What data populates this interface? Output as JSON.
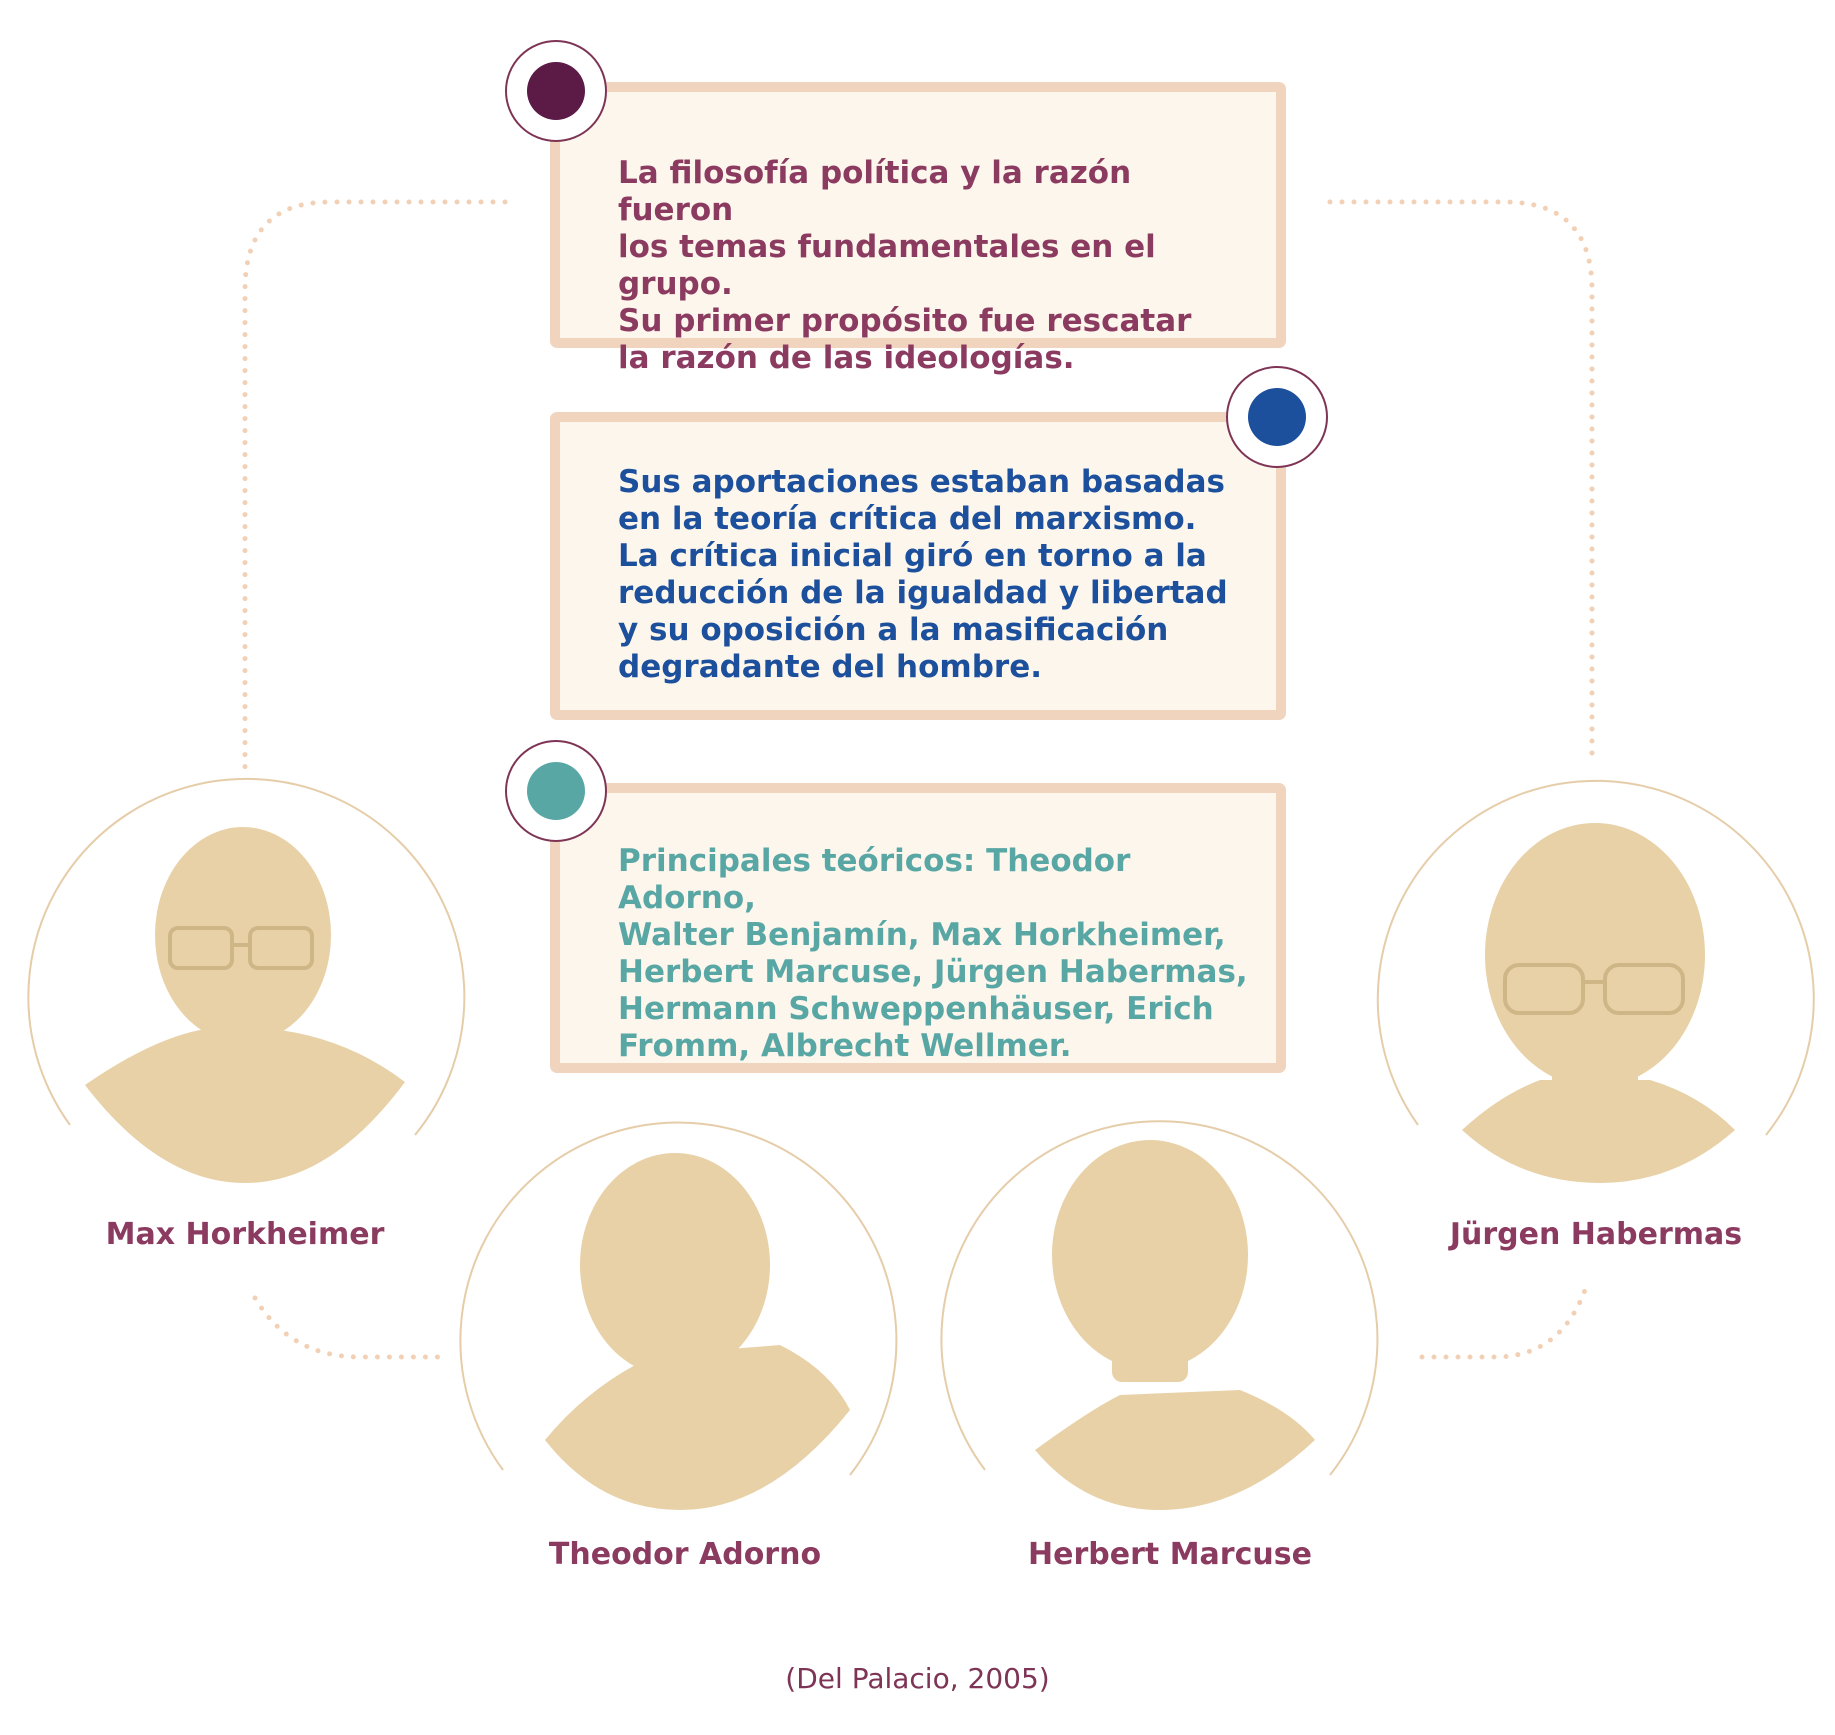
{
  "colors": {
    "dots": "#f1d0b5",
    "circle_outline": "#e6cda9",
    "portrait": "#e8d1a7",
    "card_border": "#f1d4bd",
    "card_fill": "#fdf6ec",
    "marker_ring": "#7e3455",
    "name_text": "#8c3b60"
  },
  "cards": [
    {
      "marker_color": "#5c1a47",
      "text_color": "#8c3b60",
      "text": "La filosofía política y la razón fueron\nlos temas fundamentales en el grupo.\nSu primer propósito fue rescatar\nla razón de las ideologías."
    },
    {
      "marker_color": "#1c4f9c",
      "text_color": "#1c4f9c",
      "text": "Sus aportaciones estaban basadas\nen la teoría crítica del marxismo.\nLa crítica inicial giró en torno a la\nreducción de la igualdad y libertad\ny su oposición a la masificación\ndegradante del hombre."
    },
    {
      "marker_color": "#58a7a5",
      "text_color": "#58a7a5",
      "text": "Principales teóricos: Theodor Adorno,\nWalter Benjamín, Max Horkheimer,\nHerbert Marcuse, Jürgen Habermas,\nHermann Schweppenhäuser, Erich\nFromm, Albrecht Wellmer."
    }
  ],
  "people": [
    {
      "name": "Max Horkheimer",
      "portrait_icon": "portrait-illustration"
    },
    {
      "name": "Theodor Adorno",
      "portrait_icon": "portrait-illustration"
    },
    {
      "name": "Herbert Marcuse",
      "portrait_icon": "portrait-illustration"
    },
    {
      "name": "Jürgen Habermas",
      "portrait_icon": "portrait-illustration"
    }
  ],
  "credit": "(Del Palacio, 2005)"
}
